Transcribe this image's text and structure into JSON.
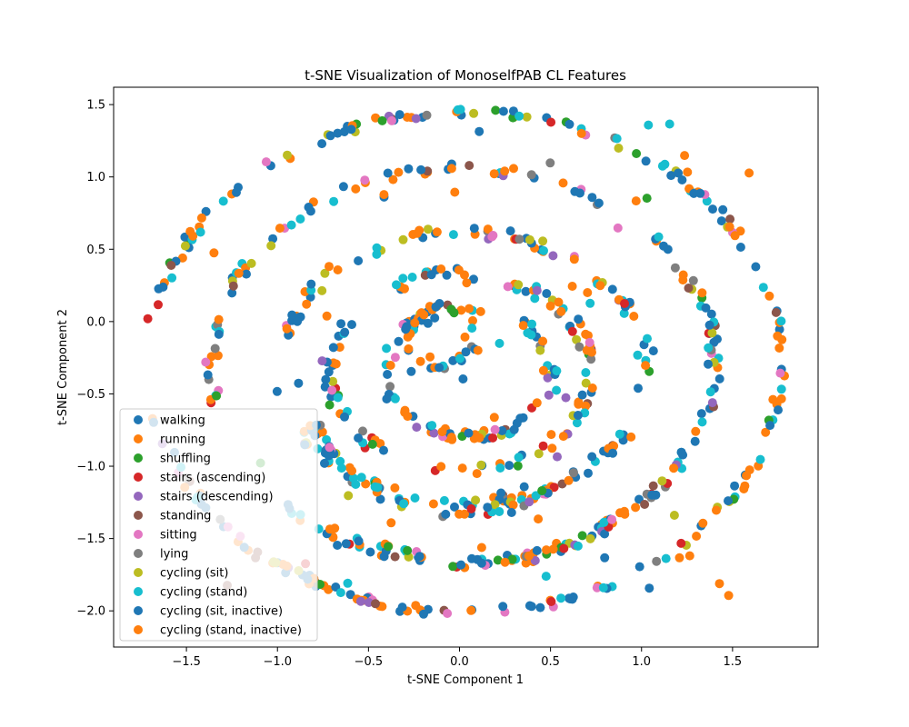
{
  "chart_data": {
    "type": "scatter",
    "title": "t-SNE Visualization of MonoselfPAB CL Features",
    "xlabel": "t-SNE Component 1",
    "ylabel": "t-SNE Component 2",
    "xlim": [
      -1.9,
      1.97
    ],
    "ylim": [
      -2.25,
      1.62
    ],
    "xticks": [
      -1.5,
      -1.0,
      -0.5,
      0.0,
      0.5,
      1.0,
      1.5
    ],
    "xtick_labels": [
      "−1.5",
      "−1.0",
      "−0.5",
      "0.0",
      "0.5",
      "1.0",
      "1.5"
    ],
    "yticks": [
      -2.0,
      -1.5,
      -1.0,
      -0.5,
      0.0,
      0.5,
      1.0,
      1.5
    ],
    "ytick_labels": [
      "−2.0",
      "−1.5",
      "−1.0",
      "−0.5",
      "0.0",
      "0.5",
      "1.0",
      "1.5"
    ],
    "grid": false,
    "legend_position": "lower-left",
    "series": [
      {
        "name": "walking",
        "color": "#1f77b4"
      },
      {
        "name": "running",
        "color": "#ff7f0e"
      },
      {
        "name": "shuffling",
        "color": "#2ca02c"
      },
      {
        "name": "stairs (ascending)",
        "color": "#d62728"
      },
      {
        "name": "stairs (descending)",
        "color": "#9467bd"
      },
      {
        "name": "standing",
        "color": "#8c564b"
      },
      {
        "name": "sitting",
        "color": "#e377c2"
      },
      {
        "name": "lying",
        "color": "#7f7f7f"
      },
      {
        "name": "cycling (sit)",
        "color": "#bcbd22"
      },
      {
        "name": "cycling (stand)",
        "color": "#17becf"
      },
      {
        "name": "cycling (sit, inactive)",
        "color": "#1f77b4"
      },
      {
        "name": "cycling (stand, inactive)",
        "color": "#ff7f0e"
      }
    ],
    "shapes": {
      "rings": [
        {
          "cx": 0.03,
          "cy": -0.28,
          "rx": 1.74,
          "ry": 1.73,
          "gaps": [
            [
              3.0,
              3.35
            ]
          ],
          "n": 240,
          "jitter": 0.03
        },
        {
          "cx": 0.02,
          "cy": -0.3,
          "rx": 1.38,
          "ry": 1.36,
          "gaps": [
            [
              3.4,
              3.9
            ],
            [
              0.7,
              0.95
            ],
            [
              4.55,
              4.75
            ]
          ],
          "n": 200,
          "jitter": 0.035
        },
        {
          "cx": 0.02,
          "cy": -0.32,
          "rx": 1.0,
          "ry": 0.94,
          "gaps": [
            [
              2.9,
              3.6
            ],
            [
              5.8,
              6.1
            ]
          ],
          "n": 160,
          "jitter": 0.04
        },
        {
          "cx": 0.0,
          "cy": -0.35,
          "rx": 0.72,
          "ry": 0.68,
          "gaps": [
            [
              2.2,
              2.6
            ],
            [
              4.1,
              4.5
            ]
          ],
          "n": 130,
          "jitter": 0.04
        },
        {
          "cx": 0.05,
          "cy": -0.35,
          "rx": 0.45,
          "ry": 0.45,
          "gaps": [
            [
              1.0,
              1.4
            ]
          ],
          "n": 90,
          "jitter": 0.04
        }
      ],
      "arcs": [
        {
          "cx": 0.0,
          "cy": -0.5,
          "r": 0.82,
          "from": 3.4,
          "to": 5.4,
          "n": 60,
          "jitter": 0.035
        },
        {
          "cx": 0.1,
          "cy": -0.55,
          "r": 1.12,
          "from": 4.2,
          "to": 5.6,
          "n": 50,
          "jitter": 0.035
        },
        {
          "cx": -0.1,
          "cy": -0.1,
          "r": 0.2,
          "from": 0.0,
          "to": 6.2,
          "n": 30,
          "jitter": 0.03
        }
      ],
      "scatter": {
        "n": 70,
        "xrange": [
          -1.4,
          1.6
        ],
        "yrange": [
          -1.9,
          1.4
        ]
      }
    }
  }
}
